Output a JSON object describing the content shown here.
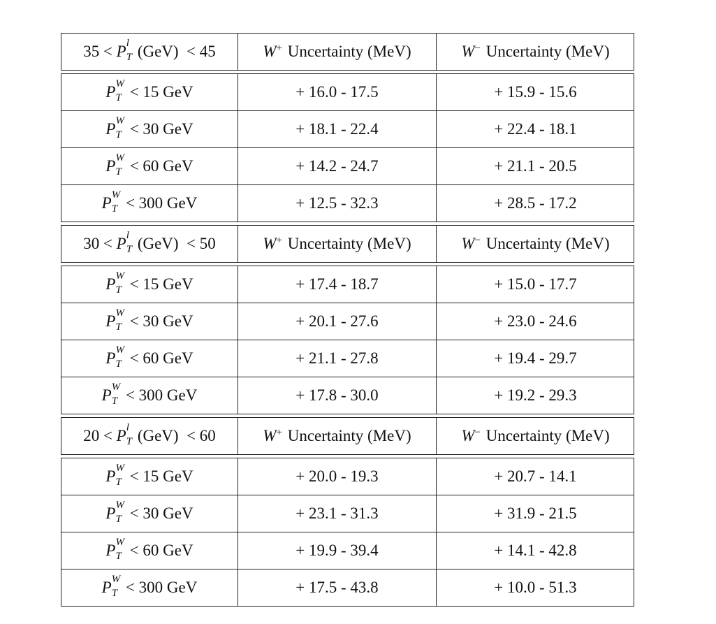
{
  "sections": [
    {
      "header": [
        [
          "35 < ",
          {
            "base": "P",
            "sup": "l",
            "sub": "T"
          },
          " (GeV)  < 45"
        ],
        [
          {
            "base": "W",
            "sup": "+"
          },
          " Uncertainty (MeV)"
        ],
        [
          {
            "base": "W",
            "sup": "−"
          },
          " Uncertainty (MeV)"
        ]
      ],
      "rows": [
        [
          [
            {
              "base": "P",
              "sup": "W",
              "sub": "T"
            },
            " < 15 GeV"
          ],
          [
            "+ 16.0 - 17.5"
          ],
          [
            "+ 15.9 - 15.6"
          ]
        ],
        [
          [
            {
              "base": "P",
              "sup": "W",
              "sub": "T"
            },
            " < 30 GeV"
          ],
          [
            "+ 18.1 - 22.4"
          ],
          [
            "+ 22.4 - 18.1"
          ]
        ],
        [
          [
            {
              "base": "P",
              "sup": "W",
              "sub": "T"
            },
            " < 60 GeV"
          ],
          [
            "+ 14.2 - 24.7"
          ],
          [
            "+ 21.1 - 20.5"
          ]
        ],
        [
          [
            {
              "base": "P",
              "sup": "W",
              "sub": "T"
            },
            " < 300 GeV"
          ],
          [
            "+ 12.5 - 32.3"
          ],
          [
            "+ 28.5 - 17.2"
          ]
        ]
      ]
    },
    {
      "header": [
        [
          "30 < ",
          {
            "base": "P",
            "sup": "l",
            "sub": "T"
          },
          " (GeV)  < 50"
        ],
        [
          {
            "base": "W",
            "sup": "+"
          },
          " Uncertainty (MeV)"
        ],
        [
          {
            "base": "W",
            "sup": "−"
          },
          " Uncertainty (MeV)"
        ]
      ],
      "rows": [
        [
          [
            {
              "base": "P",
              "sup": "W",
              "sub": "T"
            },
            " < 15 GeV"
          ],
          [
            "+ 17.4 - 18.7"
          ],
          [
            "+ 15.0 - 17.7"
          ]
        ],
        [
          [
            {
              "base": "P",
              "sup": "W",
              "sub": "T"
            },
            " < 30 GeV"
          ],
          [
            "+ 20.1 - 27.6"
          ],
          [
            "+ 23.0 - 24.6"
          ]
        ],
        [
          [
            {
              "base": "P",
              "sup": "W",
              "sub": "T"
            },
            " < 60 GeV"
          ],
          [
            "+ 21.1 - 27.8"
          ],
          [
            "+ 19.4 - 29.7"
          ]
        ],
        [
          [
            {
              "base": "P",
              "sup": "W",
              "sub": "T"
            },
            " < 300 GeV"
          ],
          [
            "+ 17.8 - 30.0"
          ],
          [
            "+ 19.2 - 29.3"
          ]
        ]
      ]
    },
    {
      "header": [
        [
          "20 < ",
          {
            "base": "P",
            "sup": "l",
            "sub": "T"
          },
          " (GeV)  < 60"
        ],
        [
          {
            "base": "W",
            "sup": "+"
          },
          " Uncertainty (MeV)"
        ],
        [
          {
            "base": "W",
            "sup": "−"
          },
          " Uncertainty (MeV)"
        ]
      ],
      "rows": [
        [
          [
            {
              "base": "P",
              "sup": "W",
              "sub": "T"
            },
            " < 15 GeV"
          ],
          [
            "+ 20.0 - 19.3"
          ],
          [
            "+ 20.7 - 14.1"
          ]
        ],
        [
          [
            {
              "base": "P",
              "sup": "W",
              "sub": "T"
            },
            " < 30 GeV"
          ],
          [
            "+ 23.1 - 31.3"
          ],
          [
            "+ 31.9 - 21.5"
          ]
        ],
        [
          [
            {
              "base": "P",
              "sup": "W",
              "sub": "T"
            },
            " < 60 GeV"
          ],
          [
            "+ 19.9 - 39.4"
          ],
          [
            "+ 14.1 - 42.8"
          ]
        ],
        [
          [
            {
              "base": "P",
              "sup": "W",
              "sub": "T"
            },
            " < 300 GeV"
          ],
          [
            "+ 17.5 - 43.8"
          ],
          [
            "+ 10.0 - 51.3"
          ]
        ]
      ]
    }
  ]
}
